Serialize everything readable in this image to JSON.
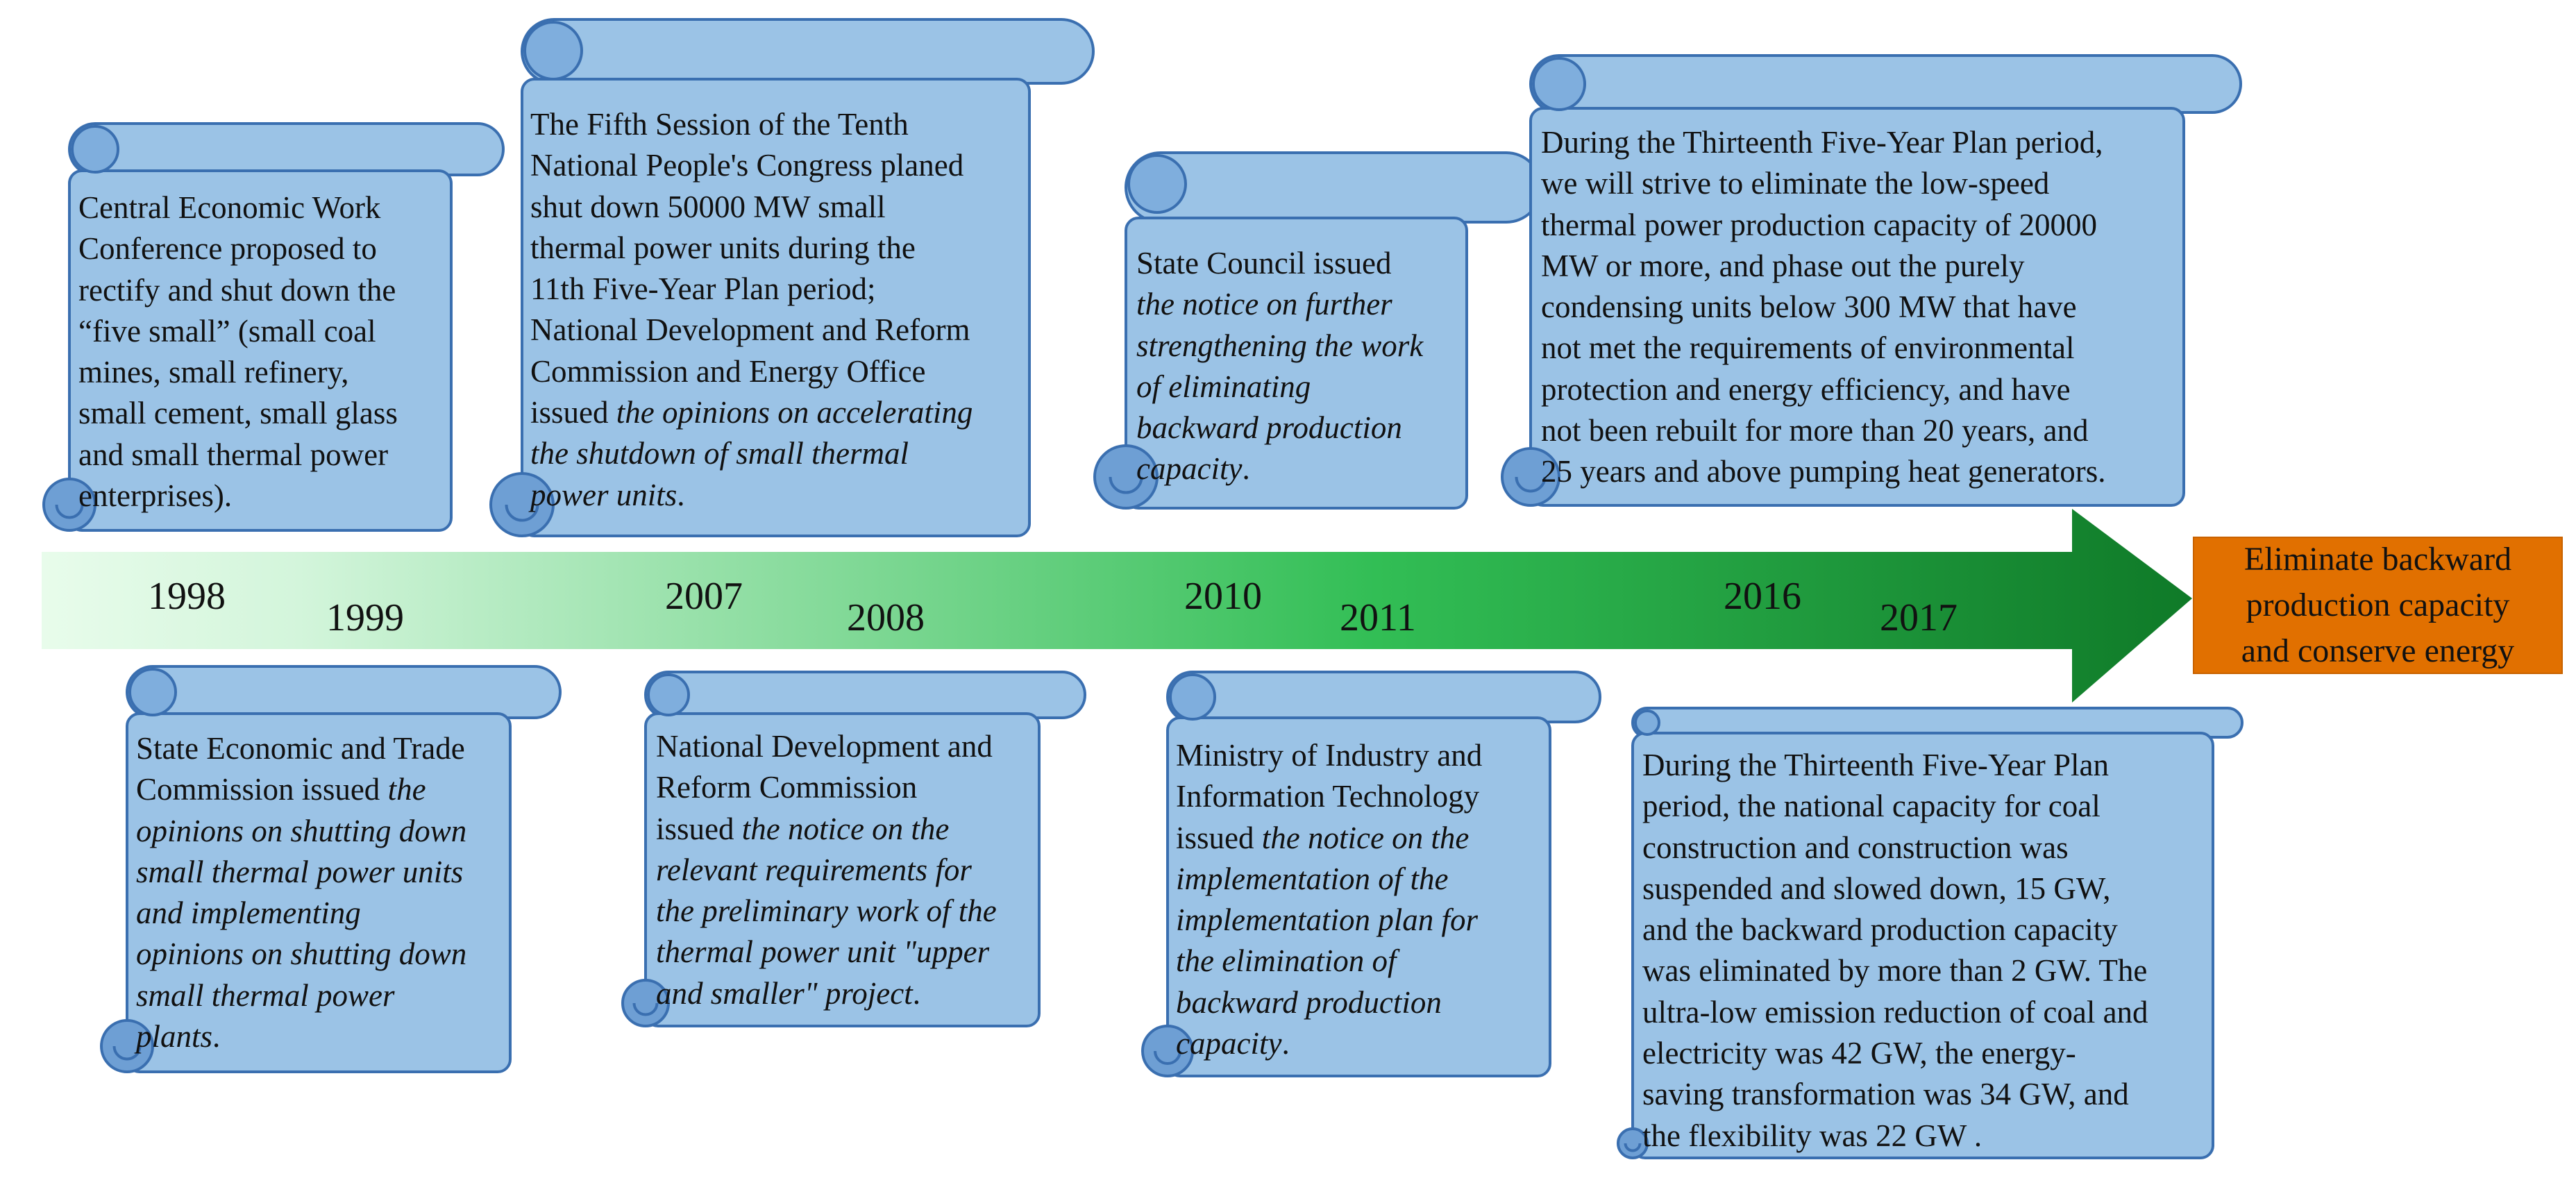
{
  "colors": {
    "scroll_fill": "#9BC3E6",
    "scroll_stroke": "#3A6FB0",
    "arrow_start": "#E8FCEB",
    "arrow_mid": "#32BE55",
    "arrow_end": "#0F7A28",
    "goal_fill": "#E17000"
  },
  "goal": {
    "text": "Eliminate backward\nproduction capacity\nand conserve  energy"
  },
  "years": [
    "1998",
    "1999",
    "2007",
    "2008",
    "2010",
    "2011",
    "2016",
    "2017"
  ],
  "events": {
    "e1998": {
      "year": "1998",
      "lines": [
        [
          {
            "t": "Central Economic Work"
          }
        ],
        [
          {
            "t": "Conference proposed to"
          }
        ],
        [
          {
            "t": "rectify and shut down the"
          }
        ],
        [
          {
            "t": "“five small” (small coal"
          }
        ],
        [
          {
            "t": "mines, small refinery,"
          }
        ],
        [
          {
            "t": "small cement, small glass"
          }
        ],
        [
          {
            "t": "and small thermal power"
          }
        ],
        [
          {
            "t": "enterprises)."
          }
        ]
      ]
    },
    "e1999": {
      "year": "1999",
      "lines": [
        [
          {
            "t": "State Economic and Trade"
          }
        ],
        [
          {
            "t": "Commission   issued "
          },
          {
            "t": "the",
            "i": true
          }
        ],
        [
          {
            "t": "opinions on shutting down",
            "i": true
          }
        ],
        [
          {
            "t": "small thermal power units",
            "i": true
          }
        ],
        [
          {
            "t": "and implementing",
            "i": true
          }
        ],
        [
          {
            "t": "opinions on shutting down",
            "i": true
          }
        ],
        [
          {
            "t": "small thermal power",
            "i": true
          }
        ],
        [
          {
            "t": "plants",
            "i": true
          },
          {
            "t": "."
          }
        ]
      ]
    },
    "e2007": {
      "year": "2007",
      "lines": [
        [
          {
            "t": "The Fifth Session of the Tenth"
          }
        ],
        [
          {
            "t": "National People's Congress planed"
          }
        ],
        [
          {
            "t": "shut down 50000 MW small"
          }
        ],
        [
          {
            "t": "thermal power units during the"
          }
        ],
        [
          {
            "t": "11th Five-Year Plan period;"
          }
        ],
        [
          {
            "t": "National Development and Reform"
          }
        ],
        [
          {
            "t": "Commission and Energy Office"
          }
        ],
        [
          {
            "t": "issued "
          },
          {
            "t": "the opinions on accelerating",
            "i": true
          }
        ],
        [
          {
            "t": "the shutdown of small thermal",
            "i": true
          }
        ],
        [
          {
            "t": "power units",
            "i": true
          },
          {
            "t": "."
          }
        ]
      ]
    },
    "e2008": {
      "year": "2008",
      "lines": [
        [
          {
            "t": "National Development and"
          }
        ],
        [
          {
            "t": "Reform Commission"
          }
        ],
        [
          {
            "t": "issued "
          },
          {
            "t": "the notice on the",
            "i": true
          }
        ],
        [
          {
            "t": "relevant requirements for",
            "i": true
          }
        ],
        [
          {
            "t": "the preliminary work of the",
            "i": true
          }
        ],
        [
          {
            "t": "thermal power unit \"upper",
            "i": true
          }
        ],
        [
          {
            "t": "and smaller\" project",
            "i": true
          },
          {
            "t": "."
          }
        ]
      ]
    },
    "e2010": {
      "year": "2010",
      "lines": [
        [
          {
            "t": "State Council issued"
          }
        ],
        [
          {
            "t": "the notice on further",
            "i": true
          }
        ],
        [
          {
            "t": "strengthening the work",
            "i": true
          }
        ],
        [
          {
            "t": "of eliminating",
            "i": true
          }
        ],
        [
          {
            "t": "backward production",
            "i": true
          }
        ],
        [
          {
            "t": "capacity",
            "i": true
          },
          {
            "t": "."
          }
        ]
      ]
    },
    "e2011": {
      "year": "2011",
      "lines": [
        [
          {
            "t": "Ministry of Industry and"
          }
        ],
        [
          {
            "t": "Information Technology"
          }
        ],
        [
          {
            "t": "issued "
          },
          {
            "t": "the notice on the",
            "i": true
          }
        ],
        [
          {
            "t": "implementation of the",
            "i": true
          }
        ],
        [
          {
            "t": "implementation plan for",
            "i": true
          }
        ],
        [
          {
            "t": "the elimination of",
            "i": true
          }
        ],
        [
          {
            "t": "backward production",
            "i": true
          }
        ],
        [
          {
            "t": "capacity",
            "i": true
          },
          {
            "t": "."
          }
        ]
      ]
    },
    "e2016": {
      "year": "2016",
      "lines": [
        [
          {
            "t": "During the Thirteenth Five-Year Plan period,"
          }
        ],
        [
          {
            "t": "we will strive to eliminate the low-speed"
          }
        ],
        [
          {
            "t": "thermal power production capacity of 20000"
          }
        ],
        [
          {
            "t": "MW or more, and phase out the purely"
          }
        ],
        [
          {
            "t": "condensing units below 300 MW that have"
          }
        ],
        [
          {
            "t": "not met the requirements of environmental"
          }
        ],
        [
          {
            "t": "protection and energy efficiency, and have"
          }
        ],
        [
          {
            "t": "not been rebuilt for more than 20 years, and"
          }
        ],
        [
          {
            "t": "25 years and above pumping heat generators."
          }
        ]
      ]
    },
    "e2017": {
      "year": "2017",
      "lines": [
        [
          {
            "t": "During the Thirteenth Five-Year Plan"
          }
        ],
        [
          {
            "t": "period, the national capacity for coal"
          }
        ],
        [
          {
            "t": "construction and construction was"
          }
        ],
        [
          {
            "t": "suspended and slowed down, 15 GW,"
          }
        ],
        [
          {
            "t": "and the backward production capacity"
          }
        ],
        [
          {
            "t": "was eliminated by more than 2 GW. The"
          }
        ],
        [
          {
            "t": "ultra-low emission reduction of coal and"
          }
        ],
        [
          {
            "t": "electricity was 42 GW, the energy-"
          }
        ],
        [
          {
            "t": "saving transformation was 34 GW, and"
          }
        ],
        [
          {
            "t": "the flexibility was 22 GW ."
          }
        ]
      ]
    }
  }
}
